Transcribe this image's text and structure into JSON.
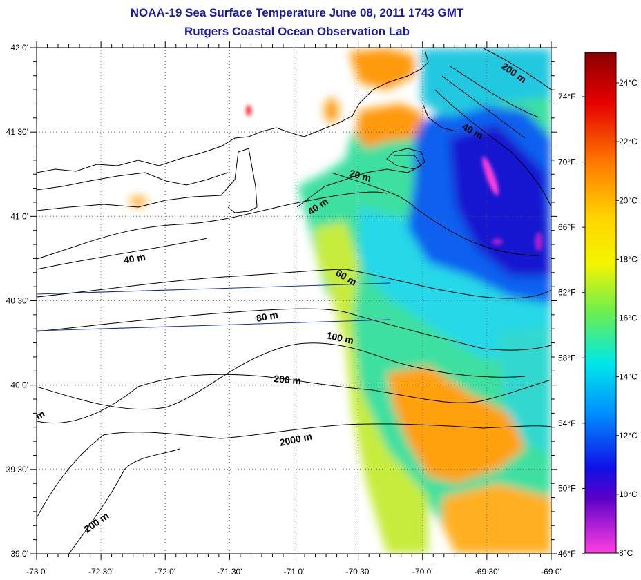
{
  "title": "NOAA-19 Sea Surface Temperature June 08, 2011 1743 GMT",
  "subtitle": "Rutgers Coastal Ocean Observation Lab",
  "map": {
    "lon_labels": [
      "-73 0'",
      "-72 30'",
      "-72 0'",
      "-71 30'",
      "-71 0'",
      "-70 30'",
      "-70 0'",
      "-69 30'",
      "-69 0'"
    ],
    "lat_labels": [
      "42 0'",
      "41 30'",
      "41 0'",
      "40 30'",
      "40 0'",
      "39 30'",
      "39 0'"
    ],
    "lon_range": [
      -73,
      -69
    ],
    "lat_range": [
      39,
      42
    ],
    "gridlines": "dotted",
    "depth_labels": [
      "200 m",
      "40 m",
      "20 m",
      "40 m",
      "40 m",
      "60 m",
      "80 m",
      "100 m",
      "200 m",
      "2000 m",
      "200 m",
      "m"
    ]
  },
  "colorbar": {
    "celsius_labels": [
      "24°C",
      "22°C",
      "20°C",
      "18°C",
      "16°C",
      "14°C",
      "12°C",
      "10°C",
      "8°C"
    ],
    "fahrenheit_labels": [
      "74°F",
      "70°F",
      "66°F",
      "62°F",
      "58°F",
      "54°F",
      "50°F",
      "46°F"
    ],
    "stops": [
      {
        "t": 0.0,
        "color": "#8a0000"
      },
      {
        "t": 0.1,
        "color": "#e60000"
      },
      {
        "t": 0.22,
        "color": "#ff7a00"
      },
      {
        "t": 0.33,
        "color": "#ffd400"
      },
      {
        "t": 0.42,
        "color": "#f5f500"
      },
      {
        "t": 0.52,
        "color": "#6aee50"
      },
      {
        "t": 0.62,
        "color": "#00e8e8"
      },
      {
        "t": 0.72,
        "color": "#0090ff"
      },
      {
        "t": 0.83,
        "color": "#1010e8"
      },
      {
        "t": 0.89,
        "color": "#5a00c8"
      },
      {
        "t": 1.0,
        "color": "#ff40e0"
      }
    ]
  }
}
